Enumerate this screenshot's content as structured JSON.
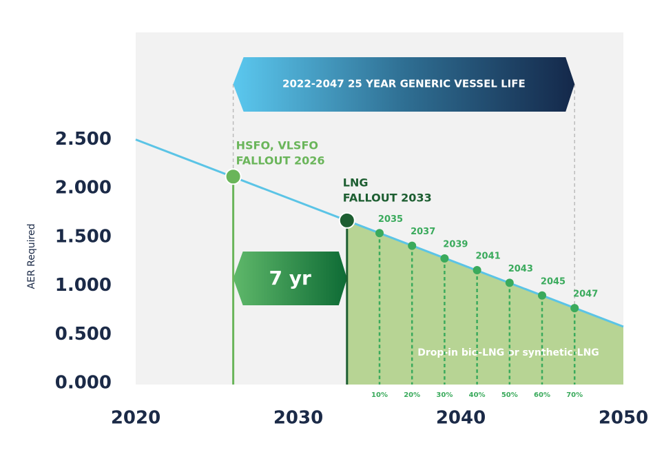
{
  "chart_data": {
    "type": "line",
    "ylabel": "AER Required",
    "xlim": [
      2020,
      2050
    ],
    "xticks": [
      2020,
      2030,
      2040,
      2050
    ],
    "ylim": [
      0,
      3.6
    ],
    "yticks": [
      {
        "value": 0,
        "label": "0.000"
      },
      {
        "value": 0.5,
        "label": "0.500"
      },
      {
        "value": 1,
        "label": "1.000"
      },
      {
        "value": 1.5,
        "label": "1.500"
      },
      {
        "value": 2,
        "label": "2.000"
      },
      {
        "value": 2.5,
        "label": "2.500"
      }
    ],
    "line": {
      "x": [
        2020,
        2050
      ],
      "values": [
        2.5,
        0.58
      ],
      "color": "#5bc4e6"
    },
    "fallouts": [
      {
        "label": [
          "HSFO, VLSFO",
          "FALLOUT 2026"
        ],
        "x": 2026,
        "value": 2.12,
        "color": "#6ab55a"
      },
      {
        "label": [
          "LNG",
          "FALLOUT 2033"
        ],
        "x": 2033,
        "value": 1.67,
        "color": "#1d5e31"
      }
    ],
    "milestones": {
      "x": [
        2035,
        2037,
        2039,
        2041,
        2043,
        2045,
        2047
      ],
      "values": [
        1.54,
        1.41,
        1.28,
        1.16,
        1.03,
        0.9,
        0.77
      ],
      "percentages": [
        "10%",
        "20%",
        "30%",
        "40%",
        "50%",
        "60%",
        "70%"
      ],
      "color": "#3aaa5c"
    },
    "area_color": "#b7d494",
    "banner": "2022-2047 25 YEAR GENERIC VESSEL LIFE",
    "gap_label": "7 yr",
    "area_label": "Drop-in bio-LNG or synthetic-LNG"
  }
}
